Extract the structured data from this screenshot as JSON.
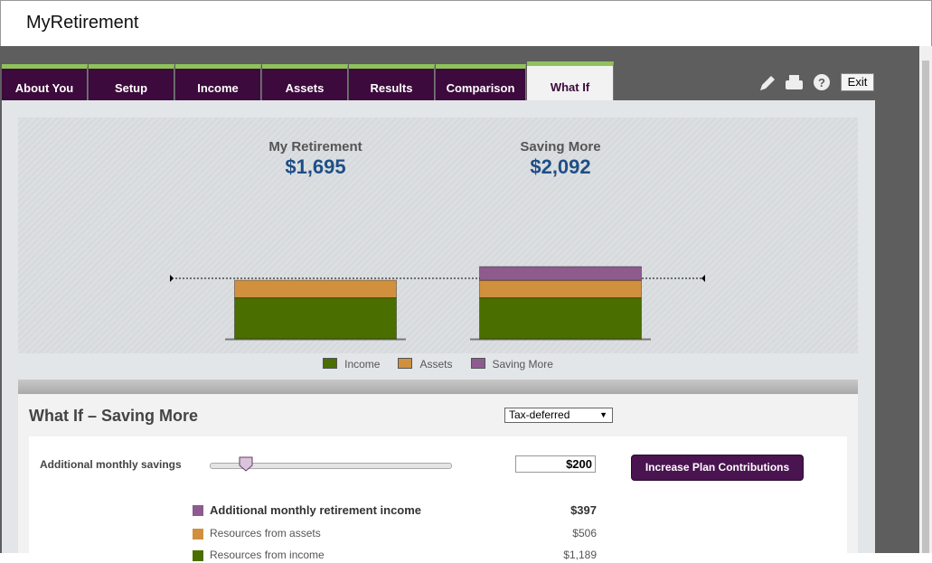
{
  "header": {
    "title": "MyRetirement"
  },
  "tabs": [
    "About You",
    "Setup",
    "Income",
    "Assets",
    "Results",
    "Comparison",
    "What If"
  ],
  "active_tab": "What If",
  "exit_button": "Exit",
  "chart_data": {
    "type": "bar",
    "stacked": true,
    "categories": [
      "My Retirement",
      "Saving More"
    ],
    "total_labels": [
      "$1,695",
      "$2,092"
    ],
    "series": [
      {
        "name": "Income",
        "color": "#4a6e00",
        "values": [
          1189,
          1189
        ]
      },
      {
        "name": "Assets",
        "color": "#d0903e",
        "values": [
          506,
          506
        ]
      },
      {
        "name": "Saving More",
        "color": "#8e5b8e",
        "values": [
          null,
          397
        ]
      }
    ]
  },
  "panel": {
    "title": "What If – Saving More",
    "select": "Tax-deferred",
    "slider_label": "Additional monthly savings",
    "input": "$200",
    "button": "Increase Plan Contributions",
    "rows": [
      {
        "label": "Additional monthly retirement income",
        "value": "$397",
        "color": "#8e5b8e"
      },
      {
        "label": "Resources from assets",
        "value": "$506",
        "color": "#d0903e"
      },
      {
        "label": "Resources from income",
        "value": "$1,189",
        "color": "#4a6e00"
      }
    ]
  }
}
